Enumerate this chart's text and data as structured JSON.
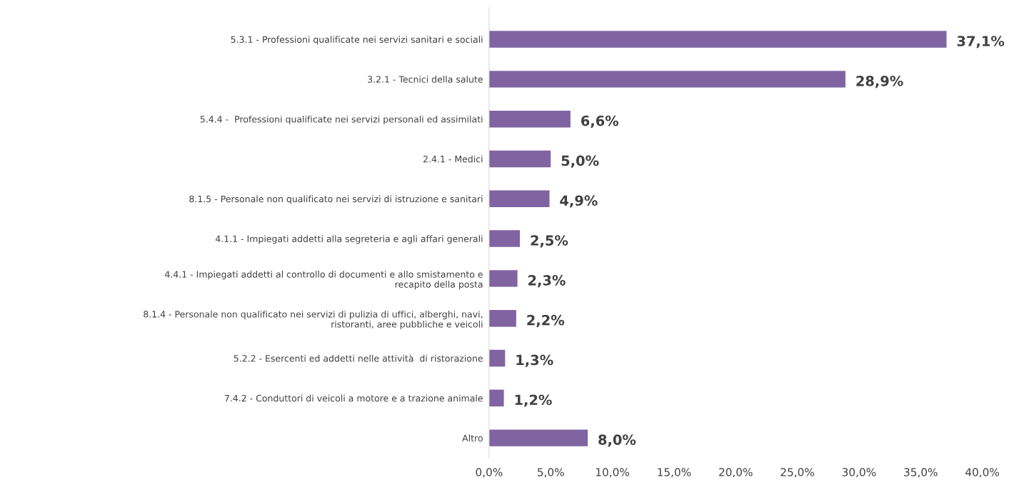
{
  "chart_data": {
    "type": "bar",
    "orientation": "horizontal",
    "categories": [
      "5.3.1 - Professioni qualificate nei servizi sanitari e sociali",
      "3.2.1 - Tecnici della salute",
      "5.4.4 -  Professioni qualificate nei servizi personali ed assimilati",
      "2.4.1 - Medici",
      "8.1.5 - Personale non qualificato nei servizi di istruzione e sanitari",
      "4.1.1 - Impiegati addetti alla segreteria e agli affari generali",
      "4.4.1 - Impiegati addetti al controllo di documenti e allo smistamento e\nrecapito della posta",
      "8.1.4 - Personale non qualificato nei servizi di pulizia di uffici, alberghi, navi,\nristoranti, aree pubbliche e veicoli",
      "5.2.2 - Esercenti ed addetti nelle attività  di ristorazione",
      "7.4.2 - Conduttori di veicoli a motore e a trazione animale",
      "Altro"
    ],
    "values": [
      37.1,
      28.9,
      6.6,
      5.0,
      4.9,
      2.5,
      2.3,
      2.2,
      1.3,
      1.2,
      8.0
    ],
    "value_labels": [
      "37,1%",
      "28,9%",
      "6,6%",
      "5,0%",
      "4,9%",
      "2,5%",
      "2,3%",
      "2,2%",
      "1,3%",
      "1,2%",
      "8,0%"
    ],
    "color": "#8064a2",
    "xlim": [
      0,
      40
    ],
    "xticks": [
      {
        "value": 0,
        "label": "0,0%"
      },
      {
        "value": 5,
        "label": "5,0%"
      },
      {
        "value": 10,
        "label": "10,0%"
      },
      {
        "value": 15,
        "label": "15,0%"
      },
      {
        "value": 20,
        "label": "20,0%"
      },
      {
        "value": 25,
        "label": "25,0%"
      },
      {
        "value": 30,
        "label": "30,0%"
      },
      {
        "value": 35,
        "label": "35,0%"
      },
      {
        "value": 40,
        "label": "40,0%"
      }
    ],
    "grid": false,
    "legend": false
  }
}
